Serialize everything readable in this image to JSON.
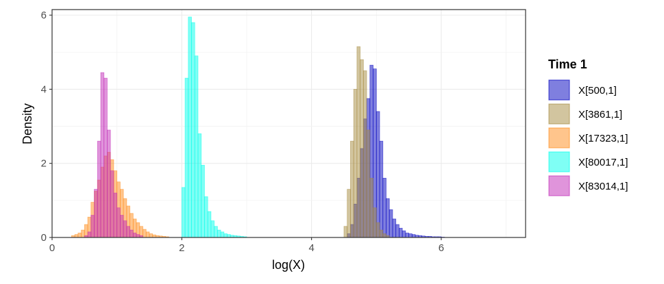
{
  "chart_data": {
    "type": "bar",
    "subtype": "overlaid-histogram",
    "xlabel": "log(X)",
    "ylabel": "Density",
    "xlim": [
      0,
      7.3
    ],
    "ylim": [
      0,
      6.15
    ],
    "x_ticks": [
      0,
      2,
      4,
      6
    ],
    "y_ticks": [
      0,
      2,
      4,
      6
    ],
    "grid": true,
    "legend": {
      "title": "Time 1",
      "position": "right",
      "entries": [
        "X[500,1]",
        "X[3861,1]",
        "X[17323,1]",
        "X[80017,1]",
        "X[83014,1]"
      ]
    },
    "bin_width": 0.05,
    "series": [
      {
        "name": "X[500,1]",
        "color": "#0000BF",
        "bin_start": 4.55,
        "values": [
          0.1,
          0.35,
          0.9,
          1.6,
          2.4,
          3.2,
          3.75,
          4.65,
          4.55,
          3.4,
          2.6,
          1.6,
          1.05,
          0.75,
          0.5,
          0.35,
          0.25,
          0.18,
          0.12,
          0.1,
          0.08,
          0.06,
          0.05,
          0.04,
          0.03,
          0.03,
          0.02,
          0.02,
          0.02,
          0.01
        ]
      },
      {
        "name": "X[3861,1]",
        "color": "#A58B3F",
        "bin_start": 4.5,
        "values": [
          0.3,
          1.3,
          2.6,
          4.0,
          5.15,
          4.8,
          4.5,
          2.9,
          1.6,
          0.8,
          0.4,
          0.2,
          0.1,
          0.05
        ]
      },
      {
        "name": "X[17323,1]",
        "color": "#FF8C1A",
        "bin_start": 0.3,
        "values": [
          0.05,
          0.08,
          0.12,
          0.2,
          0.35,
          0.55,
          0.95,
          1.25,
          1.55,
          1.9,
          2.2,
          2.3,
          2.1,
          1.8,
          1.5,
          1.3,
          1.05,
          0.85,
          0.65,
          0.5,
          0.4,
          0.3,
          0.22,
          0.15,
          0.1,
          0.07,
          0.05,
          0.04,
          0.03,
          0.02
        ]
      },
      {
        "name": "X[80017,1]",
        "color": "#00FFEB",
        "bin_start": 2.0,
        "values": [
          1.35,
          4.3,
          5.95,
          5.8,
          4.9,
          2.8,
          1.95,
          1.1,
          0.7,
          0.45,
          0.3,
          0.2,
          0.15,
          0.1,
          0.08,
          0.06,
          0.05,
          0.04,
          0.03,
          0.02
        ]
      },
      {
        "name": "X[83014,1]",
        "color": "#C12AB8",
        "bin_start": 0.5,
        "values": [
          0.05,
          0.15,
          0.6,
          1.3,
          2.6,
          4.45,
          4.3,
          2.9,
          1.8,
          1.2,
          0.8,
          0.6,
          0.45,
          0.3,
          0.2,
          0.12,
          0.08,
          0.05
        ]
      }
    ]
  }
}
